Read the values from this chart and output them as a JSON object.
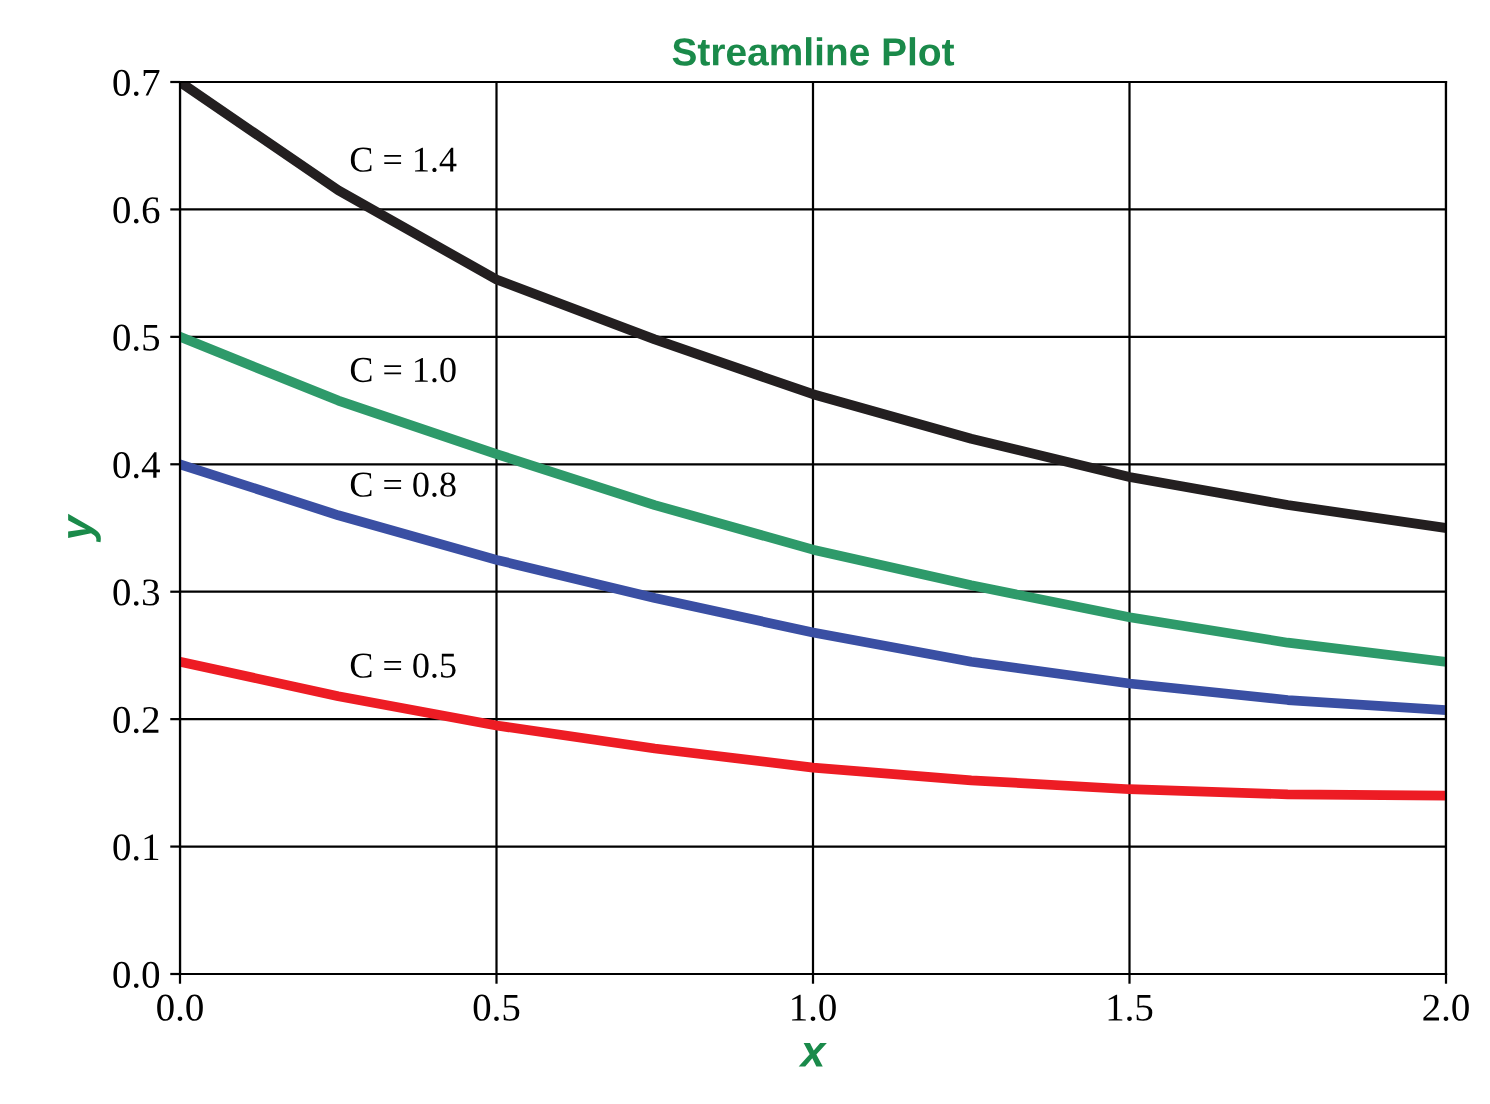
{
  "chart_data": {
    "type": "line",
    "title": "Streamline Plot",
    "xlabel": "x",
    "ylabel": "y",
    "x": [
      0,
      0.25,
      0.5,
      0.75,
      1.0,
      1.25,
      1.5,
      1.75,
      2.0
    ],
    "series": [
      {
        "name": "C = 1.4",
        "color": "#231f20",
        "values": [
          0.7,
          0.615,
          0.545,
          0.498,
          0.455,
          0.42,
          0.39,
          0.368,
          0.35
        ]
      },
      {
        "name": "C = 1.0",
        "color": "#2e9a6a",
        "values": [
          0.5,
          0.45,
          0.408,
          0.368,
          0.333,
          0.305,
          0.28,
          0.26,
          0.245
        ]
      },
      {
        "name": "C = 0.8",
        "color": "#3a4fa3",
        "values": [
          0.4,
          0.36,
          0.325,
          0.295,
          0.268,
          0.245,
          0.228,
          0.215,
          0.207
        ]
      },
      {
        "name": "C = 0.5",
        "color": "#ed1c24",
        "values": [
          0.245,
          0.218,
          0.195,
          0.177,
          0.162,
          0.152,
          0.145,
          0.141,
          0.14
        ]
      }
    ],
    "xlim": [
      0,
      2.0
    ],
    "ylim": [
      0,
      0.7
    ],
    "xticks": [
      {
        "value": 0,
        "label": "0.0"
      },
      0.5,
      {
        "value": 1,
        "label": "1.0"
      },
      1.5,
      {
        "value": 2,
        "label": "2.0"
      }
    ],
    "yticks": [
      {
        "value": 0,
        "label": "0.0"
      },
      0.1,
      0.2,
      0.3,
      0.4,
      0.5,
      0.6,
      0.7
    ],
    "grid": true,
    "legend": false,
    "marker": "none",
    "line_style": "solid"
  }
}
